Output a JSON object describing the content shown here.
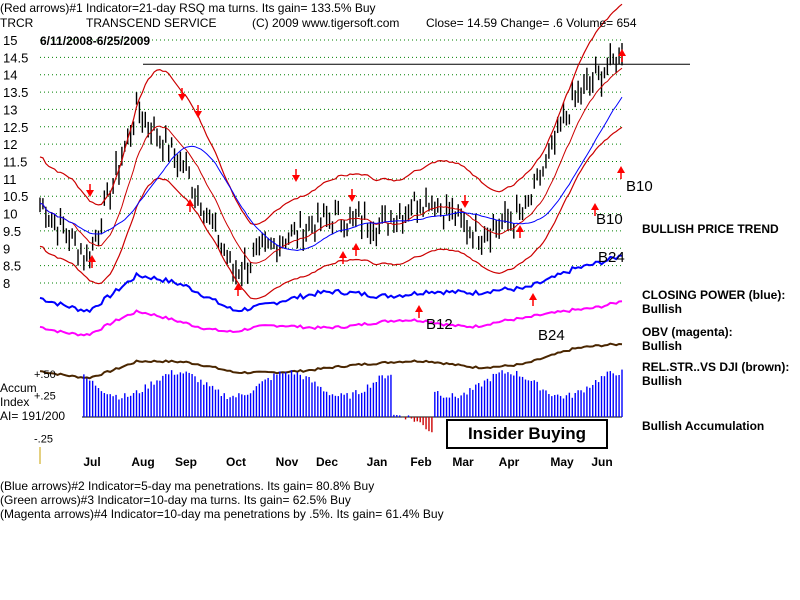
{
  "header": {
    "line1": "(Red arrows)#1 Indicator=21-day RSQ ma turns. Its gain= 133.5% Buy",
    "symbol": "TRCR",
    "company": "TRANSCEND SERVICE",
    "copyright": "(C) 2009 www.tigersoft.com",
    "quote": "Close=  14.59  Change= .6 Volume= 654",
    "dates": "6/11/2008-6/25/2009"
  },
  "panel_labels": {
    "accum_title": "Accum",
    "accum_index": "Index",
    "ai_value": "AI= 191/200",
    "insider": "Insider Buying"
  },
  "right_labels": {
    "b10_upper": "B10",
    "b10_lower": "B10",
    "b24_upper": "B24",
    "b12": "B12",
    "b24_lower": "B24",
    "price_trend": "BULLISH PRICE TREND",
    "cp_title": "CLOSING POWER (blue):",
    "cp_value": "Bullish",
    "obv_title": "OBV (magenta):",
    "obv_value": "Bullish",
    "rs_title": "REL.STR..VS DJI (brown):",
    "rs_value": "Bullish",
    "accum_status": "Bullish Accumulation"
  },
  "footer": {
    "line1": "(Blue arrows)#2 Indicator=5-day ma penetrations. Its gain= 80.8% Buy",
    "line2": "(Green arrows)#3 Indicator=10-day ma turns. Its gain= 62.5% Buy",
    "line3": "(Magenta arrows)#4 Indicator=10-day ma penetrations by .5%. Its gain= 61.4% Buy"
  },
  "colors": {
    "price_bars": "#000000",
    "bands": "#cc0000",
    "ma": "#0000ff",
    "closing_power": "#0000ff",
    "obv": "#ff00ff",
    "rel_strength": "#4a2600",
    "accum_bars": "#0000ff",
    "accum_neg": "#cc0000",
    "grid": "#008000",
    "arrows": "#ff0000"
  },
  "chart_data": {
    "type": "bar",
    "title": "TRCR TRANSCEND SERVICE",
    "x_tick_labels": [
      "Jul",
      "Aug",
      "Sep",
      "Oct",
      "Nov",
      "Dec",
      "Jan",
      "Feb",
      "Mar",
      "Apr",
      "May",
      "Jun"
    ],
    "price_ticks": [
      15,
      14.5,
      14,
      13.5,
      13,
      12.5,
      12,
      11.5,
      11,
      10.5,
      10,
      9.5,
      9,
      8.5,
      8
    ],
    "price_tick_labels": [
      "15",
      "14.5",
      "14",
      "13.5",
      "13",
      "12.5",
      "12",
      "11.5",
      "11",
      "10.5",
      "10",
      "9.5",
      "9",
      "8.5",
      "8"
    ],
    "ylim": [
      8,
      15
    ],
    "resistance_level": 14.3,
    "closes_monthly": [
      {
        "month": "Jun",
        "close": 10.3
      },
      {
        "month": "Jul",
        "close": 8.7
      },
      {
        "month": "Aug",
        "close": 13.0
      },
      {
        "month": "Sep",
        "close": 11.3
      },
      {
        "month": "Oct",
        "close": 8.3
      },
      {
        "month": "Nov",
        "close": 9.3
      },
      {
        "month": "Dec",
        "close": 9.9
      },
      {
        "month": "Jan",
        "close": 9.7
      },
      {
        "month": "Feb",
        "close": 10.5
      },
      {
        "month": "Mar",
        "close": 9.4
      },
      {
        "month": "Apr",
        "close": 10.0
      },
      {
        "month": "May",
        "close": 13.3
      },
      {
        "month": "Jun",
        "close": 14.59
      }
    ],
    "accum_ticks": [
      0.5,
      0.25,
      -0.25
    ],
    "accum_tick_labels": [
      "+.50",
      "+.25",
      "-.25"
    ],
    "series": [
      {
        "name": "Price (high-low bars)"
      },
      {
        "name": "21-day ma bands (red)"
      },
      {
        "name": "50-day ma (blue)"
      },
      {
        "name": "Closing Power (blue)"
      },
      {
        "name": "OBV (magenta)"
      },
      {
        "name": "Rel. Strength vs DJI (brown)"
      },
      {
        "name": "Accumulation Index"
      }
    ]
  }
}
